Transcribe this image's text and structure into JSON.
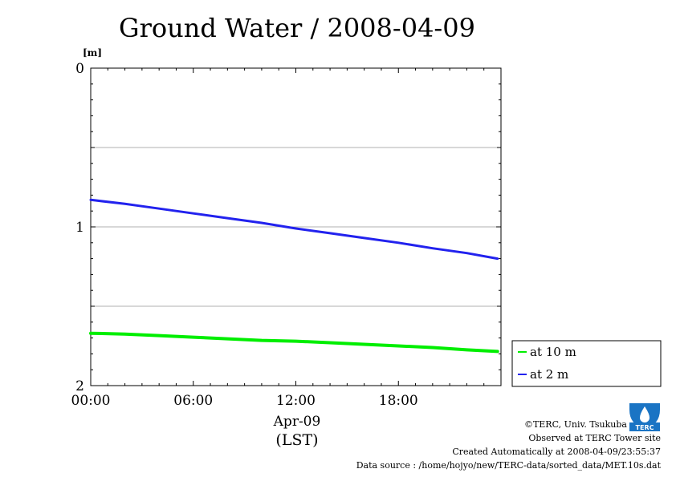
{
  "chart_data": {
    "type": "line",
    "title": "Ground Water / 2008-04-09",
    "ylabel": "[m]",
    "yaxis": {
      "ylim": [
        2,
        0
      ],
      "inverted": true,
      "ticks": [
        "0",
        "1",
        "2"
      ],
      "tick_values": [
        0,
        1,
        2
      ],
      "grid_values": [
        0.5,
        1,
        1.5
      ]
    },
    "xaxis": {
      "xlim": [
        0,
        24
      ],
      "ticks": [
        "00:00",
        "06:00",
        "12:00",
        "18:00"
      ],
      "tick_values": [
        0,
        6,
        12,
        18
      ],
      "date_label": "Apr-09",
      "xlabel": "(LST)"
    },
    "grid": true,
    "legend_position": "right",
    "series": [
      {
        "name": "at 10 m",
        "color": "#00ee00",
        "x": [
          0,
          2,
          4,
          6,
          8,
          10,
          12,
          14,
          16,
          18,
          20,
          22,
          23.8
        ],
        "y": [
          1.67,
          1.675,
          1.685,
          1.695,
          1.705,
          1.715,
          1.72,
          1.73,
          1.74,
          1.75,
          1.76,
          1.775,
          1.785
        ]
      },
      {
        "name": "at 2 m",
        "color": "#2222ee",
        "x": [
          0,
          2,
          4,
          6,
          8,
          10,
          12,
          14,
          16,
          18,
          20,
          22,
          23.8
        ],
        "y": [
          0.83,
          0.855,
          0.885,
          0.915,
          0.945,
          0.975,
          1.01,
          1.04,
          1.07,
          1.1,
          1.135,
          1.165,
          1.2
        ]
      }
    ]
  },
  "credits": {
    "copyright": "©TERC, Univ. Tsukuba",
    "observed": "Observed at TERC Tower site",
    "created": "Created Automatically at 2008-04-09/23:55:37",
    "source": "Data source : /home/hojyo/new/TERC-data/sorted_data/MET.10s.dat"
  },
  "logo": {
    "text": "TERC",
    "icon": "terc-logo-icon",
    "color": "#1a74c4"
  }
}
